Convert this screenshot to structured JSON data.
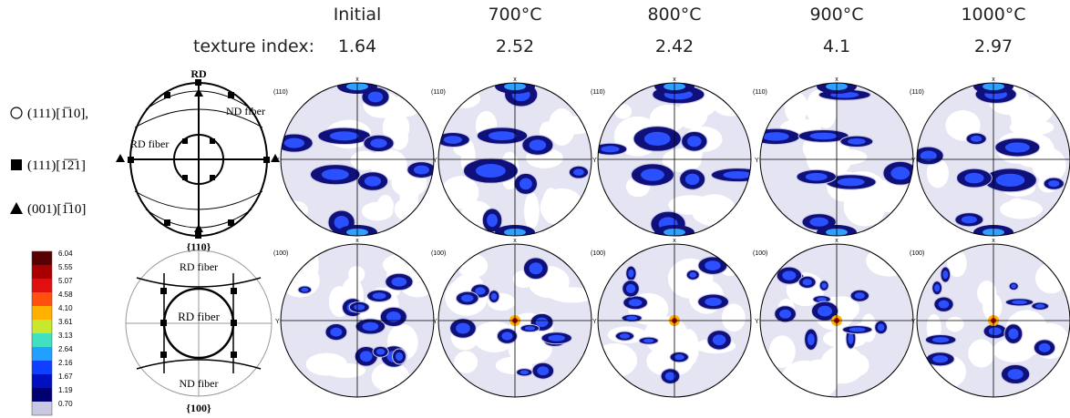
{
  "header": {
    "columns": [
      "Initial",
      "700°C",
      "800°C",
      "900°C",
      "1000°C"
    ],
    "index_label": "texture index:",
    "index_values": [
      "1.64",
      "2.52",
      "2.42",
      "4.1",
      "2.97"
    ]
  },
  "legend": {
    "orientations": [
      "(111)[1̅10],",
      "(111)[1̅2̅1]",
      "(001)[1̅10]"
    ]
  },
  "colorbar": {
    "labels": [
      "6.04",
      "5.55",
      "5.07",
      "4.58",
      "4.10",
      "3.61",
      "3.13",
      "2.64",
      "2.16",
      "1.67",
      "1.19",
      "0.70"
    ]
  },
  "schematic_110": {
    "rd": "RD",
    "nd_fiber": "ND fiber",
    "rd_fiber": "RD fiber",
    "plane": "{110}"
  },
  "schematic_100": {
    "rd_fiber_top": "RD fiber",
    "rd_fiber_mid": "RD fiber",
    "nd_fiber": "ND fiber",
    "plane": "{100}"
  },
  "pole_figures": {
    "row_labels": [
      "(110)",
      "(100)"
    ],
    "x_axis": "x",
    "y_axis": "Y"
  }
}
